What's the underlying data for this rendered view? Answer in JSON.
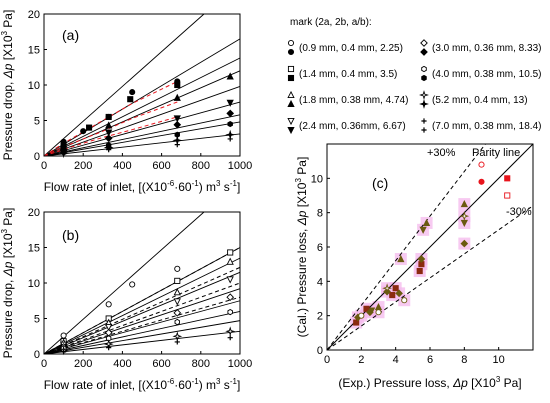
{
  "legend": {
    "title": "mark (2a, 2b, a/b):",
    "items": [
      {
        "marker": "circle-open",
        "text": "(0.9 mm, 0.4 mm, 2.25)"
      },
      {
        "marker": "circle",
        "text": ""
      },
      {
        "marker": "square-open",
        "text": "(1.4 mm, 0.4 mm, 3.5)"
      },
      {
        "marker": "square",
        "text": ""
      },
      {
        "marker": "triangle-open",
        "text": "(1.8 mm, 0.38 mm, 4.74)"
      },
      {
        "marker": "triangle",
        "text": ""
      },
      {
        "marker": "triangle-down-open",
        "text": "(2.4 mm, 0.36mm, 6.67)"
      },
      {
        "marker": "triangle-down",
        "text": ""
      },
      {
        "marker": "diamond-open",
        "text": "(3.0 mm, 0.36 mm, 8.33)"
      },
      {
        "marker": "diamond",
        "text": ""
      },
      {
        "marker": "hexagon-open",
        "text": "(4.0 mm, 0.38 mm, 10.5)"
      },
      {
        "marker": "hexagon",
        "text": ""
      },
      {
        "marker": "star-open",
        "text": "(5.2 mm, 0.4 mm, 13)"
      },
      {
        "marker": "star",
        "text": ""
      },
      {
        "marker": "cross-open",
        "text": "(7.0 mm, 0.38 mm, 18.4)"
      },
      {
        "marker": "cross",
        "text": ""
      }
    ]
  },
  "chart_data": [
    {
      "type": "scatter",
      "panel": "(a)",
      "xlabel": "Flow rate of inlet, [(X10-6·60-1) m3 s-1]",
      "ylabel": "Pressure drop, Δp [X103 Pa]",
      "xlim": [
        0,
        1000
      ],
      "ylim": [
        0,
        20
      ],
      "xticks": [
        "0",
        "200",
        "400",
        "600",
        "800",
        "1000"
      ],
      "yticks": [
        "0",
        "5",
        "10",
        "15",
        "20"
      ],
      "fit_lines": [
        {
          "slope": 0.0245
        },
        {
          "slope": 0.0165
        },
        {
          "slope": 0.0138
        },
        {
          "slope": 0.012
        },
        {
          "slope": 0.0098
        },
        {
          "slope": 0.0076
        },
        {
          "slope": 0.0058
        },
        {
          "slope": 0.0048
        },
        {
          "slope": 0.0031
        }
      ],
      "dashed_series": [
        {
          "x": [
            0,
            100,
            200,
            300,
            450,
            680
          ],
          "y": [
            0,
            1.8,
            3.4,
            5.0,
            7.4,
            10.5
          ]
        },
        {
          "x": [
            0,
            100,
            200,
            300,
            450,
            680
          ],
          "y": [
            0,
            1.3,
            2.4,
            3.5,
            5.3,
            7.6
          ]
        },
        {
          "x": [
            0,
            100,
            200,
            300,
            450,
            680
          ],
          "y": [
            0,
            0.9,
            1.8,
            2.6,
            3.7,
            5.5
          ]
        }
      ],
      "series": [
        {
          "marker": "circle",
          "color": "#000000",
          "x": [
            100,
            200,
            330,
            450,
            680
          ],
          "y": [
            2.0,
            3.5,
            5.5,
            9.0,
            10.5
          ]
        },
        {
          "marker": "square",
          "color": "#000000",
          "x": [
            100,
            230,
            330,
            440,
            680
          ],
          "y": [
            1.5,
            4.0,
            5.5,
            8.0,
            10.0
          ]
        },
        {
          "marker": "triangle",
          "color": "#000000",
          "x": [
            100,
            330,
            680,
            950
          ],
          "y": [
            1.3,
            4.3,
            8.2,
            11.2
          ]
        },
        {
          "marker": "triangle-down",
          "color": "#000000",
          "x": [
            100,
            330,
            680,
            950
          ],
          "y": [
            1.0,
            3.3,
            5.3,
            7.5
          ]
        },
        {
          "marker": "diamond",
          "color": "#000000",
          "x": [
            100,
            330,
            680,
            950
          ],
          "y": [
            0.8,
            2.5,
            4.4,
            6.0
          ]
        },
        {
          "marker": "hexagon",
          "color": "#000000",
          "x": [
            100,
            330,
            680,
            950
          ],
          "y": [
            0.5,
            1.5,
            3.0,
            4.5
          ]
        },
        {
          "marker": "star",
          "color": "#000000",
          "x": [
            100,
            330,
            680,
            950
          ],
          "y": [
            0.4,
            1.2,
            2.2,
            3.0
          ]
        },
        {
          "marker": "cross",
          "color": "#000000",
          "x": [
            100,
            330,
            680,
            950
          ],
          "y": [
            0.3,
            0.9,
            1.6,
            2.4
          ]
        }
      ]
    },
    {
      "type": "scatter",
      "panel": "(b)",
      "xlabel": "Flow rate of inlet, [(X10-6·60-1) m3 s-1]",
      "ylabel": "Pressure drop, Δp [X103 Pa]",
      "xlim": [
        0,
        1000
      ],
      "ylim": [
        0,
        20
      ],
      "xticks": [
        "0",
        "200",
        "400",
        "600",
        "800",
        "1000"
      ],
      "yticks": [
        "0",
        "5",
        "10",
        "15",
        "20"
      ],
      "fit_lines": [
        {
          "slope": 0.0245
        },
        {
          "slope": 0.015
        },
        {
          "slope": 0.0135
        },
        {
          "slope": 0.0115
        },
        {
          "slope": 0.0092
        },
        {
          "slope": 0.0075
        },
        {
          "slope": 0.006
        },
        {
          "slope": 0.0047
        },
        {
          "slope": 0.0032
        }
      ],
      "dashed_series": [
        {
          "x": [
            0,
            1000
          ],
          "y": [
            0,
            15.0
          ]
        },
        {
          "x": [
            0,
            1000
          ],
          "y": [
            0,
            12.2
          ]
        },
        {
          "x": [
            0,
            1000
          ],
          "y": [
            0,
            10.0
          ]
        },
        {
          "x": [
            0,
            1000
          ],
          "y": [
            0,
            8.0
          ]
        }
      ],
      "series": [
        {
          "marker": "circle-open",
          "color": "#000000",
          "x": [
            100,
            330,
            450,
            680
          ],
          "y": [
            2.6,
            7.0,
            9.8,
            12.0
          ]
        },
        {
          "marker": "square-open",
          "color": "#000000",
          "x": [
            100,
            330,
            680,
            950
          ],
          "y": [
            1.8,
            5.0,
            10.3,
            14.3
          ]
        },
        {
          "marker": "triangle-open",
          "color": "#000000",
          "x": [
            100,
            330,
            680,
            950
          ],
          "y": [
            1.6,
            4.4,
            8.7,
            13.0
          ]
        },
        {
          "marker": "triangle-down-open",
          "color": "#000000",
          "x": [
            100,
            330,
            680,
            950
          ],
          "y": [
            1.3,
            3.8,
            7.4,
            10.5
          ]
        },
        {
          "marker": "diamond-open",
          "color": "#000000",
          "x": [
            100,
            330,
            680,
            950
          ],
          "y": [
            1.0,
            3.0,
            5.8,
            8.0
          ]
        },
        {
          "marker": "hexagon-open",
          "color": "#000000",
          "x": [
            100,
            330,
            680,
            950
          ],
          "y": [
            0.8,
            2.2,
            4.5,
            5.9
          ]
        },
        {
          "marker": "star-open",
          "color": "#000000",
          "x": [
            100,
            330,
            680,
            950
          ],
          "y": [
            0.5,
            1.4,
            2.5,
            3.2
          ]
        },
        {
          "marker": "cross-open",
          "color": "#000000",
          "x": [
            100,
            330,
            680,
            950
          ],
          "y": [
            0.3,
            0.9,
            1.7,
            2.3
          ]
        }
      ]
    },
    {
      "type": "scatter",
      "panel": "(c)",
      "xlabel": "(Exp.) Pressure loss, Δp [X103 Pa]",
      "ylabel": "(Cal.) Pressure loss, Δp [X103 Pa]",
      "xlim": [
        0,
        12
      ],
      "ylim": [
        0,
        12
      ],
      "xticks": [
        "0",
        "2",
        "4",
        "6",
        "8",
        "10"
      ],
      "yticks": [
        "0",
        "2",
        "4",
        "6",
        "8",
        "10"
      ],
      "annotations": [
        "+30%",
        "Parity line",
        "-30%"
      ],
      "reference_lines": [
        {
          "name": "Parity line",
          "slope": 1.0,
          "style": "solid"
        },
        {
          "name": "+30%",
          "slope": 1.3,
          "style": "dashed"
        },
        {
          "name": "-30%",
          "slope": 0.7,
          "style": "dashed"
        }
      ],
      "highlight_color": "#f4b8ec",
      "series": [
        {
          "marker": "circle",
          "color": "#e8141c",
          "x": [
            9.0
          ],
          "y": [
            9.8
          ]
        },
        {
          "marker": "circle-open",
          "color": "#e8141c",
          "x": [
            9.0
          ],
          "y": [
            10.8
          ]
        },
        {
          "marker": "square",
          "color": "#e8141c",
          "x": [
            10.5
          ],
          "y": [
            10.0
          ]
        },
        {
          "marker": "square-open",
          "color": "#e8141c",
          "x": [
            10.5
          ],
          "y": [
            9.0
          ]
        },
        {
          "marker": "triangle",
          "color": "#6b5a10",
          "x": [
            5.8,
            8.0,
            3.0,
            4.3
          ],
          "y": [
            7.4,
            8.5,
            2.5,
            5.3
          ]
        },
        {
          "marker": "triangle-down",
          "color": "#6b5a10",
          "x": [
            5.6,
            8.0,
            2.6
          ],
          "y": [
            7.0,
            7.4,
            2.3
          ]
        },
        {
          "marker": "square",
          "color": "#8b2a10",
          "x": [
            1.7,
            2.3,
            3.8,
            4.0,
            5.4,
            5.5
          ],
          "y": [
            1.6,
            2.4,
            3.2,
            3.6,
            4.6,
            5.0
          ]
        },
        {
          "marker": "diamond",
          "color": "#6b5a10",
          "x": [
            1.8,
            2.5,
            3.5,
            4.2,
            5.5,
            8.0
          ],
          "y": [
            1.9,
            2.2,
            3.4,
            3.3,
            5.3,
            6.2
          ]
        },
        {
          "marker": "circle-open",
          "color": "#6b5a10",
          "x": [
            2.0,
            3.0,
            4.5
          ],
          "y": [
            2.0,
            2.2,
            2.9
          ]
        },
        {
          "marker": "star-open",
          "color": "#6b5a10",
          "x": [
            3.5,
            8.0
          ],
          "y": [
            3.6,
            7.8
          ]
        }
      ]
    }
  ]
}
